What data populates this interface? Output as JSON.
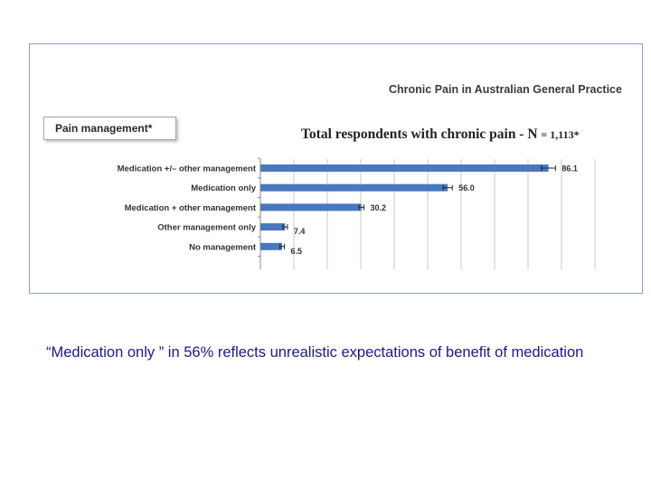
{
  "source_title": "Chronic Pain in Australian General Practice",
  "section_label": "Pain management*",
  "caption": "“Medication only ” in 56%  reflects unrealistic expectations of benefit of medication",
  "colors": {
    "bar": "#4a78bd",
    "grid": "#c8c8c8",
    "caption": "#1a1a8c",
    "frame": "#8aa2c8"
  },
  "chart_data": {
    "type": "bar",
    "orientation": "horizontal",
    "title": "Total respondents with chronic pain - N",
    "title_n": "= 1,113*",
    "categories": [
      "Medication +/– other management",
      "Medication only",
      "Medication + other management",
      "Other management only",
      "No management"
    ],
    "values": [
      86.1,
      56.0,
      30.2,
      7.4,
      6.5
    ],
    "value_labels": [
      "86.1",
      "56.0",
      "30.2",
      "7.4",
      "6.5"
    ],
    "error_bars": true,
    "xlim": [
      0,
      100
    ],
    "grid": true,
    "legend": "none"
  }
}
